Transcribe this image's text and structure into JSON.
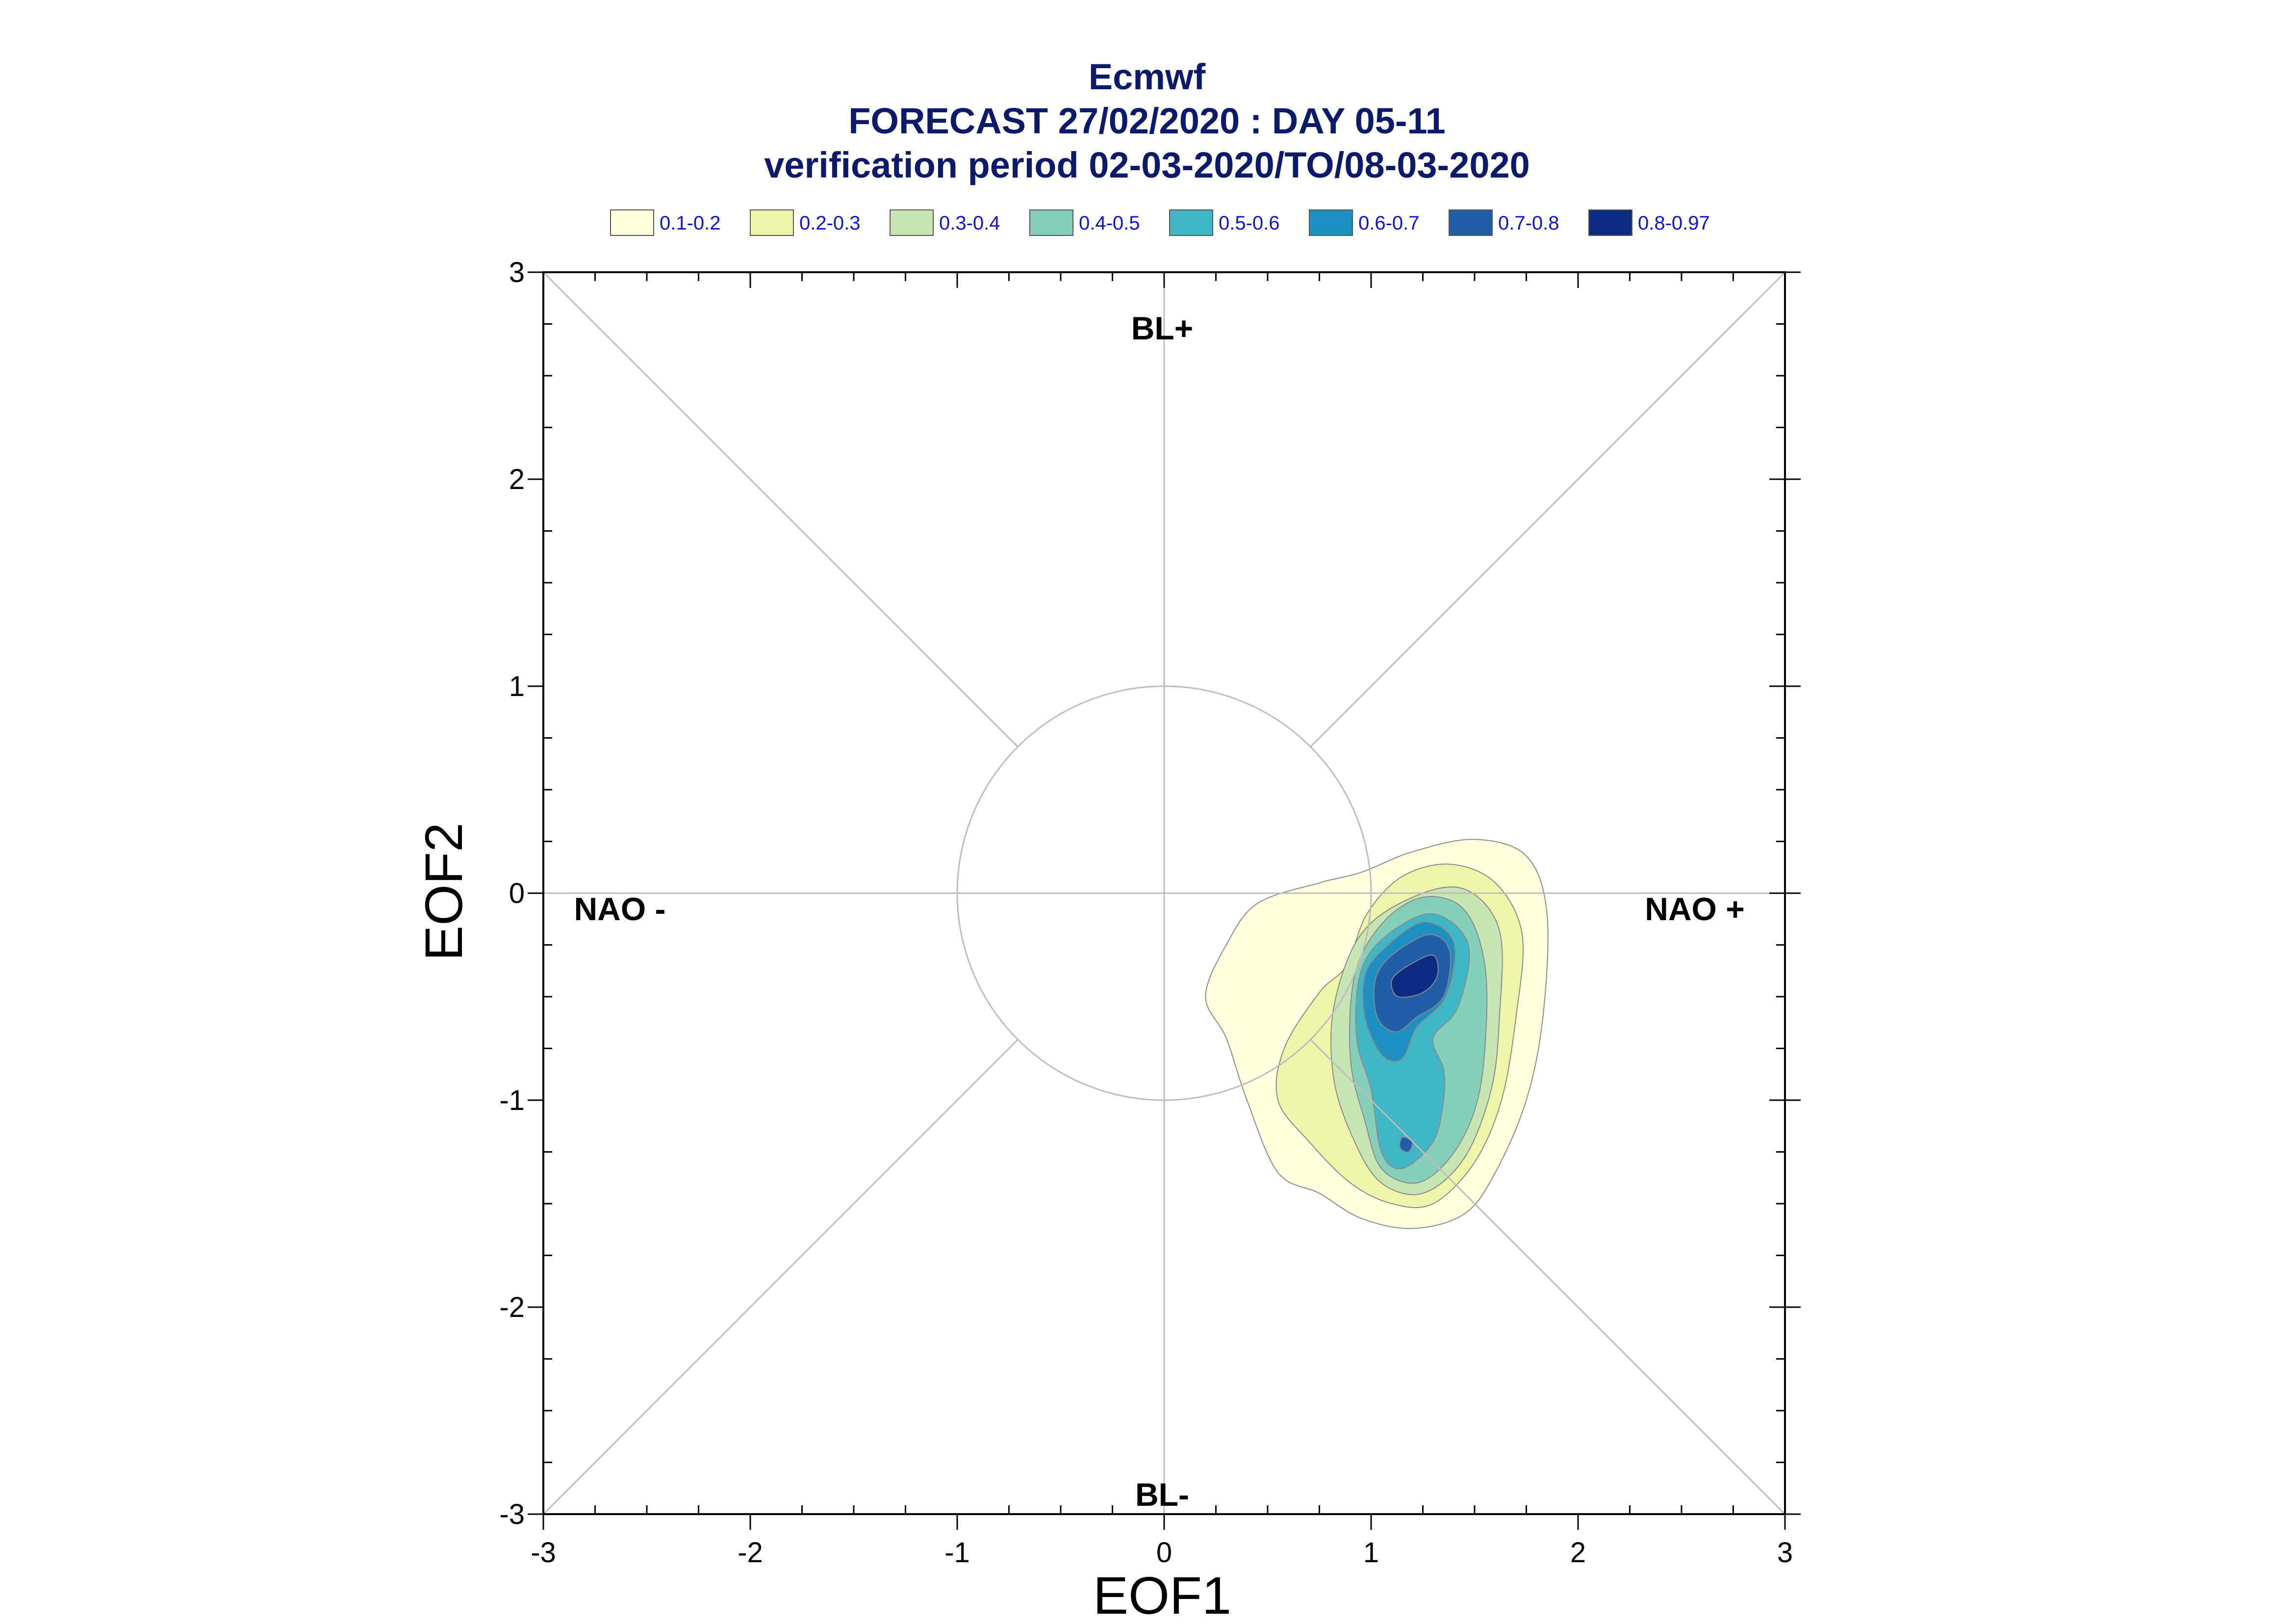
{
  "title": "Ecmwf",
  "subtitle1": "FORECAST 27/02/2020 : DAY 05-11",
  "subtitle2": "verification period 02-03-2020/TO/08-03-2020",
  "legend": [
    {
      "label": "0.1-0.2",
      "color": "#ffffdd"
    },
    {
      "label": "0.2-0.3",
      "color": "#eef5a8"
    },
    {
      "label": "0.3-0.4",
      "color": "#c8e6b4"
    },
    {
      "label": "0.4-0.5",
      "color": "#86cfbb"
    },
    {
      "label": "0.5-0.6",
      "color": "#41b6c4"
    },
    {
      "label": "0.6-0.7",
      "color": "#1d8fc0"
    },
    {
      "label": "0.7-0.8",
      "color": "#225ea8"
    },
    {
      "label": "0.8-0.97",
      "color": "#0c2c84"
    }
  ],
  "chart_data": {
    "type": "contour",
    "xlabel": "EOF1",
    "ylabel": "EOF2",
    "xlim": [
      -3,
      3
    ],
    "ylim": [
      -3,
      3
    ],
    "xticks": [
      "-3",
      "-2",
      "-1",
      "0",
      "1",
      "2",
      "3"
    ],
    "yticks": [
      "-3",
      "-2",
      "-1",
      "0",
      "1",
      "2",
      "3"
    ],
    "regime_labels": {
      "top": "BL+",
      "bottom": "BL-",
      "left": "NAO -",
      "right": "NAO +"
    },
    "reference_circle_radius": 1,
    "contour_levels": [
      {
        "level": "0.1-0.2",
        "points": [
          [
            0.3,
            -0.25
          ],
          [
            0.45,
            -0.05
          ],
          [
            0.75,
            0.05
          ],
          [
            0.95,
            0.1
          ],
          [
            1.2,
            0.2
          ],
          [
            1.5,
            0.26
          ],
          [
            1.75,
            0.18
          ],
          [
            1.85,
            -0.1
          ],
          [
            1.83,
            -0.6
          ],
          [
            1.75,
            -1.0
          ],
          [
            1.6,
            -1.35
          ],
          [
            1.45,
            -1.55
          ],
          [
            1.2,
            -1.62
          ],
          [
            0.95,
            -1.57
          ],
          [
            0.75,
            -1.45
          ],
          [
            0.55,
            -1.35
          ],
          [
            0.4,
            -1.0
          ],
          [
            0.3,
            -0.7
          ],
          [
            0.2,
            -0.5
          ]
        ]
      },
      {
        "level": "0.2-0.3",
        "points": [
          [
            0.75,
            -0.48
          ],
          [
            0.88,
            -0.35
          ],
          [
            0.98,
            -0.1
          ],
          [
            1.15,
            0.08
          ],
          [
            1.38,
            0.14
          ],
          [
            1.6,
            0.05
          ],
          [
            1.73,
            -0.2
          ],
          [
            1.7,
            -0.6
          ],
          [
            1.63,
            -1.0
          ],
          [
            1.5,
            -1.3
          ],
          [
            1.3,
            -1.5
          ],
          [
            1.1,
            -1.5
          ],
          [
            0.9,
            -1.4
          ],
          [
            0.7,
            -1.2
          ],
          [
            0.55,
            -1.0
          ],
          [
            0.58,
            -0.75
          ]
        ]
      },
      {
        "level": "0.3-0.4",
        "points": [
          [
            0.82,
            -0.55
          ],
          [
            0.95,
            -0.2
          ],
          [
            1.2,
            -0.02
          ],
          [
            1.45,
            0.02
          ],
          [
            1.62,
            -0.18
          ],
          [
            1.62,
            -0.6
          ],
          [
            1.58,
            -0.95
          ],
          [
            1.45,
            -1.28
          ],
          [
            1.25,
            -1.45
          ],
          [
            1.05,
            -1.4
          ],
          [
            0.92,
            -1.2
          ],
          [
            0.82,
            -0.9
          ]
        ]
      },
      {
        "level": "0.4-0.5",
        "points": [
          [
            0.92,
            -0.4
          ],
          [
            1.05,
            -0.15
          ],
          [
            1.25,
            -0.02
          ],
          [
            1.45,
            -0.08
          ],
          [
            1.55,
            -0.35
          ],
          [
            1.55,
            -0.75
          ],
          [
            1.5,
            -1.05
          ],
          [
            1.38,
            -1.28
          ],
          [
            1.22,
            -1.4
          ],
          [
            1.05,
            -1.33
          ],
          [
            0.97,
            -1.1
          ],
          [
            0.9,
            -0.8
          ]
        ]
      },
      {
        "level": "0.5-0.6",
        "points": [
          [
            0.95,
            -0.38
          ],
          [
            1.08,
            -0.2
          ],
          [
            1.3,
            -0.1
          ],
          [
            1.47,
            -0.25
          ],
          [
            1.42,
            -0.55
          ],
          [
            1.3,
            -0.7
          ],
          [
            1.35,
            -0.85
          ],
          [
            1.35,
            -1.0
          ],
          [
            1.3,
            -1.2
          ],
          [
            1.15,
            -1.33
          ],
          [
            1.05,
            -1.25
          ],
          [
            1.0,
            -0.95
          ],
          [
            0.93,
            -0.7
          ]
        ]
      },
      {
        "level": "0.6-0.7",
        "points": [
          [
            0.97,
            -0.4
          ],
          [
            1.05,
            -0.28
          ],
          [
            1.25,
            -0.14
          ],
          [
            1.4,
            -0.24
          ],
          [
            1.36,
            -0.5
          ],
          [
            1.22,
            -0.65
          ],
          [
            1.15,
            -0.8
          ],
          [
            1.05,
            -0.78
          ],
          [
            0.97,
            -0.6
          ]
        ]
      },
      {
        "level": "0.7-0.8",
        "points": [
          [
            1.02,
            -0.42
          ],
          [
            1.1,
            -0.3
          ],
          [
            1.28,
            -0.2
          ],
          [
            1.38,
            -0.28
          ],
          [
            1.35,
            -0.5
          ],
          [
            1.22,
            -0.6
          ],
          [
            1.12,
            -0.67
          ],
          [
            1.03,
            -0.6
          ]
        ]
      },
      {
        "level": "0.8-0.97",
        "points": [
          [
            1.1,
            -0.42
          ],
          [
            1.18,
            -0.35
          ],
          [
            1.3,
            -0.3
          ],
          [
            1.32,
            -0.4
          ],
          [
            1.25,
            -0.48
          ],
          [
            1.13,
            -0.5
          ]
        ]
      },
      {
        "level": "0.7-0.8",
        "points": [
          [
            1.15,
            -1.18
          ],
          [
            1.2,
            -1.2
          ],
          [
            1.18,
            -1.25
          ],
          [
            1.14,
            -1.23
          ]
        ]
      }
    ]
  }
}
